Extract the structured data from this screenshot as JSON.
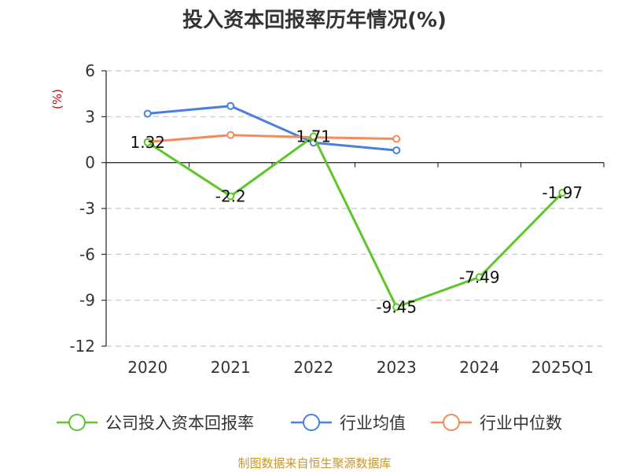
{
  "chart_data": {
    "type": "line",
    "title": "投入资本回报率历年情况(%)",
    "ylabel": "(%)",
    "xlabel": "",
    "categories": [
      "2020",
      "2021",
      "2022",
      "2023",
      "2024",
      "2025Q1"
    ],
    "ylim": [
      -12,
      6
    ],
    "yticks": [
      6,
      3,
      0,
      -3,
      -6,
      -9,
      -12
    ],
    "grid": true,
    "legend_position": "bottom",
    "series": [
      {
        "name": "公司投入资本回报率",
        "color": "#5ec52a",
        "values": [
          1.32,
          -2.2,
          1.71,
          -9.45,
          -7.49,
          -1.97
        ],
        "labels": [
          "1.32",
          "-2.2",
          "1.71",
          "-9.45",
          "-7.49",
          "-1.97"
        ]
      },
      {
        "name": "行业均值",
        "color": "#4a7fe0",
        "values": [
          3.2,
          3.7,
          1.3,
          0.8,
          null,
          null
        ]
      },
      {
        "name": "行业中位数",
        "color": "#f58a5a",
        "values": [
          1.35,
          1.8,
          1.65,
          1.55,
          null,
          null
        ]
      }
    ],
    "source": "制图数据来自恒生聚源数据库"
  }
}
